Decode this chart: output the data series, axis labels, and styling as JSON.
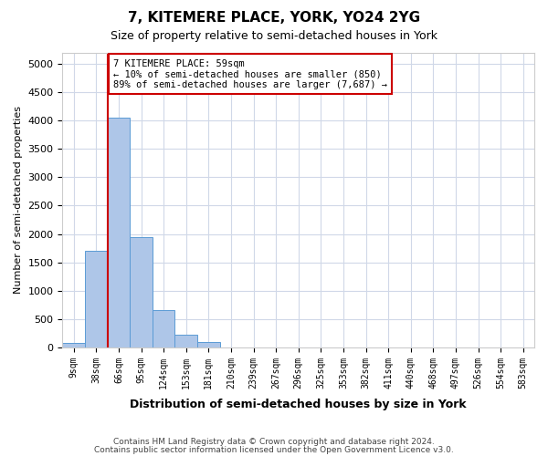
{
  "title": "7, KITEMERE PLACE, YORK, YO24 2YG",
  "subtitle": "Size of property relative to semi-detached houses in York",
  "xlabel": "Distribution of semi-detached houses by size in York",
  "ylabel": "Number of semi-detached properties",
  "footer_line1": "Contains HM Land Registry data © Crown copyright and database right 2024.",
  "footer_line2": "Contains public sector information licensed under the Open Government Licence v3.0.",
  "bin_labels": [
    "9sqm",
    "38sqm",
    "66sqm",
    "95sqm",
    "124sqm",
    "153sqm",
    "181sqm",
    "210sqm",
    "239sqm",
    "267sqm",
    "296sqm",
    "325sqm",
    "353sqm",
    "382sqm",
    "411sqm",
    "440sqm",
    "468sqm",
    "497sqm",
    "526sqm",
    "554sqm",
    "583sqm"
  ],
  "bar_values": [
    75,
    1700,
    4050,
    1950,
    650,
    230,
    100,
    0,
    0,
    0,
    0,
    0,
    0,
    0,
    0,
    0,
    0,
    0,
    0,
    0,
    0
  ],
  "bar_color": "#aec6e8",
  "bar_edge_color": "#5b9bd5",
  "ylim": [
    0,
    5200
  ],
  "yticks": [
    0,
    500,
    1000,
    1500,
    2000,
    2500,
    3000,
    3500,
    4000,
    4500,
    5000
  ],
  "property_size": 59,
  "property_label": "7 KITEMERE PLACE: 59sqm",
  "pct_smaller": 10,
  "count_smaller": 850,
  "pct_larger": 89,
  "count_larger": 7687,
  "vline_color": "#cc0000",
  "annotation_box_color": "#cc0000",
  "grid_color": "#d0d8e8",
  "background_color": "#ffffff"
}
